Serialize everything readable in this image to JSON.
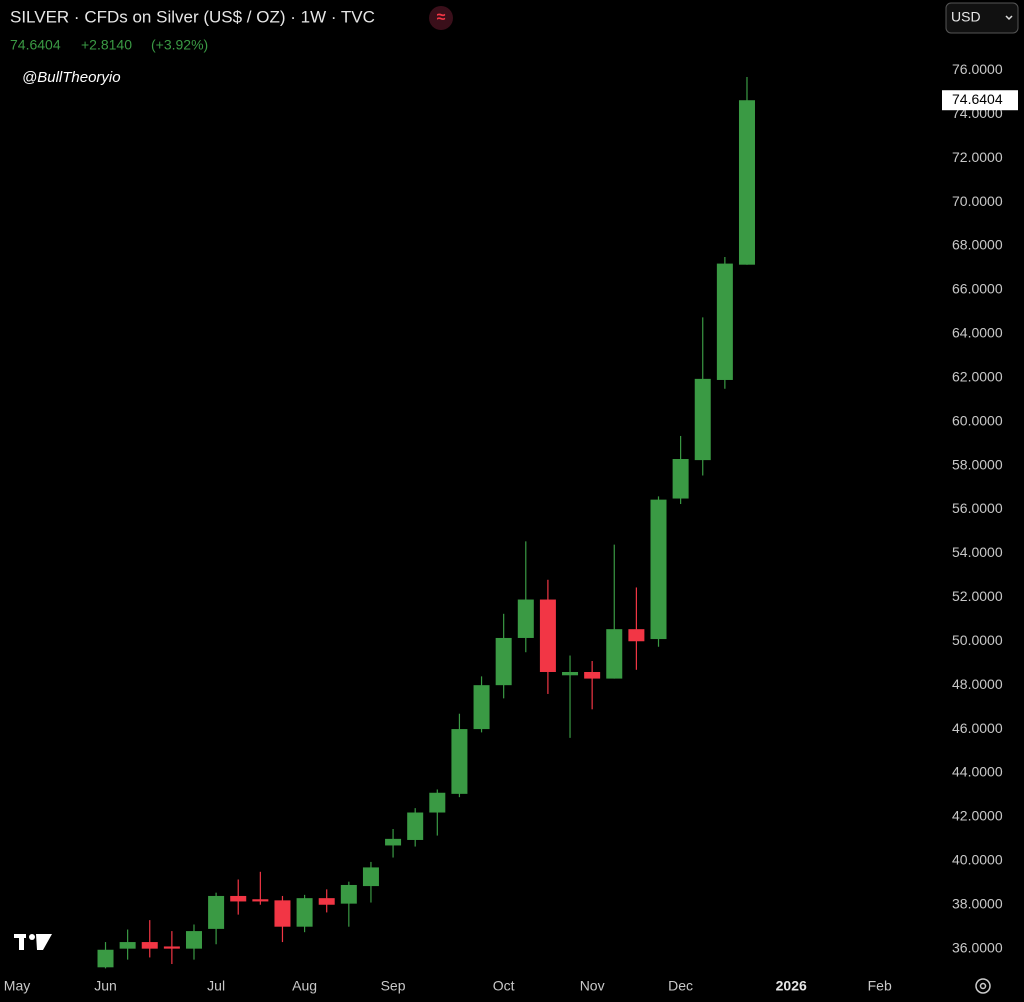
{
  "chart_data": {
    "type": "candlestick",
    "title": "SILVER · CFDs on Silver (US$ / OZ) · 1W · TVC",
    "quote_change": "+2.8140",
    "quote_change_pct": "(+3.92%)",
    "watermark": "@BullTheoryio",
    "currency": "USD",
    "up_color": "#3a9a44",
    "down_color": "#f23645",
    "x": [
      0,
      1,
      2,
      3,
      4,
      5,
      6,
      7,
      8,
      9,
      10,
      11,
      12,
      13,
      14,
      15,
      16,
      17,
      18,
      19,
      20,
      21,
      22,
      23,
      24,
      25,
      26,
      27,
      28,
      29
    ],
    "open": [
      35.15,
      36.0,
      36.3,
      36.1,
      36.0,
      36.9,
      38.4,
      38.25,
      38.2,
      37.0,
      38.3,
      38.05,
      38.85,
      40.7,
      40.95,
      42.2,
      43.05,
      46.0,
      48.0,
      50.15,
      51.9,
      48.45,
      48.6,
      48.3,
      50.55,
      50.1,
      56.5,
      58.25,
      61.9,
      67.15
    ],
    "high": [
      36.3,
      36.87,
      37.3,
      36.8,
      37.1,
      38.55,
      39.15,
      39.5,
      38.4,
      38.45,
      38.7,
      39.05,
      39.95,
      41.45,
      42.4,
      43.25,
      46.7,
      48.4,
      51.25,
      54.55,
      52.8,
      49.35,
      49.1,
      54.4,
      52.45,
      56.6,
      59.35,
      64.75,
      67.5,
      75.7
    ],
    "low": [
      35.1,
      35.5,
      35.6,
      35.3,
      35.5,
      36.2,
      37.55,
      38.0,
      36.3,
      36.75,
      37.65,
      37.0,
      38.1,
      40.15,
      40.65,
      41.15,
      42.9,
      45.85,
      47.4,
      49.5,
      47.6,
      45.6,
      46.9,
      48.3,
      48.7,
      49.75,
      56.25,
      57.55,
      61.5,
      67.15
    ],
    "close": [
      35.95,
      36.3,
      36.0,
      36.0,
      36.8,
      38.4,
      38.15,
      38.15,
      37.0,
      38.3,
      38.0,
      38.9,
      39.7,
      41.0,
      42.2,
      43.1,
      46.0,
      48.0,
      50.15,
      51.9,
      48.6,
      48.6,
      48.3,
      50.55,
      50.0,
      56.45,
      58.3,
      61.95,
      67.2,
      74.6404
    ],
    "xlim": [
      -4.77,
      37.5
    ],
    "xticks": [
      {
        "value": -4,
        "label": "May"
      },
      {
        "value": 0,
        "label": "Jun"
      },
      {
        "value": 5,
        "label": "Jul"
      },
      {
        "value": 9,
        "label": "Aug"
      },
      {
        "value": 13,
        "label": "Sep"
      },
      {
        "value": 18,
        "label": "Oct"
      },
      {
        "value": 22,
        "label": "Nov"
      },
      {
        "value": 26,
        "label": "Dec"
      },
      {
        "value": 31,
        "label": "2026"
      },
      {
        "value": 35,
        "label": "Feb"
      }
    ],
    "ylim": [
      34.8,
      76.7
    ],
    "yticks": [
      {
        "value": 36,
        "label": "36.0000"
      },
      {
        "value": 38,
        "label": "38.0000"
      },
      {
        "value": 40,
        "label": "40.0000"
      },
      {
        "value": 42,
        "label": "42.0000"
      },
      {
        "value": 44,
        "label": "44.0000"
      },
      {
        "value": 46,
        "label": "46.0000"
      },
      {
        "value": 48,
        "label": "48.0000"
      },
      {
        "value": 50,
        "label": "50.0000"
      },
      {
        "value": 52,
        "label": "52.0000"
      },
      {
        "value": 54,
        "label": "54.0000"
      },
      {
        "value": 56,
        "label": "56.0000"
      },
      {
        "value": 58,
        "label": "58.0000"
      },
      {
        "value": 60,
        "label": "60.0000"
      },
      {
        "value": 62,
        "label": "62.0000"
      },
      {
        "value": 64,
        "label": "64.0000"
      },
      {
        "value": 66,
        "label": "66.0000"
      },
      {
        "value": 68,
        "label": "68.0000"
      },
      {
        "value": 70,
        "label": "70.0000"
      },
      {
        "value": 72,
        "label": "72.0000"
      },
      {
        "value": 74,
        "label": "74.0000"
      },
      {
        "value": 76,
        "label": "76.0000"
      }
    ]
  }
}
